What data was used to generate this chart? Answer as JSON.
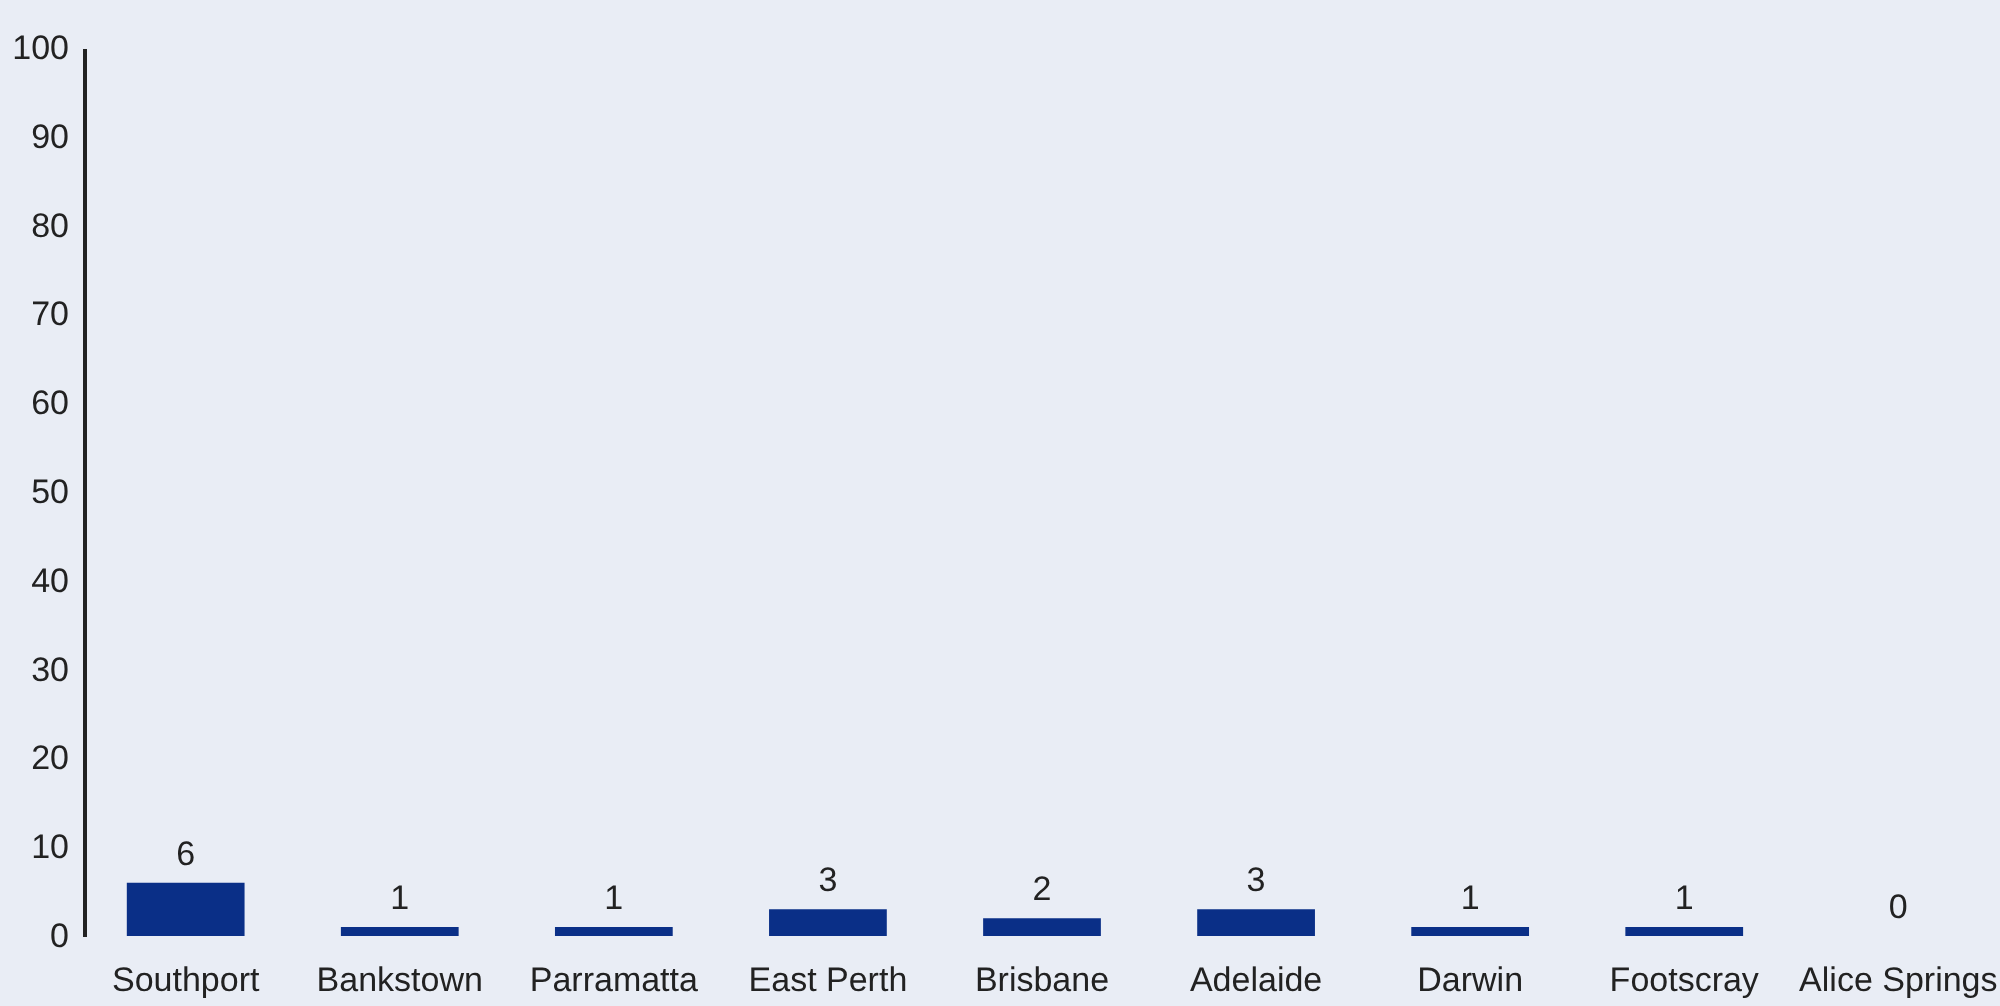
{
  "chart_data": {
    "type": "bar",
    "categories": [
      "Southport",
      "Bankstown",
      "Parramatta",
      "East Perth",
      "Brisbane",
      "Adelaide",
      "Darwin",
      "Footscray",
      "Alice Springs"
    ],
    "values": [
      6,
      1,
      1,
      3,
      2,
      3,
      1,
      1,
      0
    ],
    "color": "#0a2f87",
    "ylim": [
      0,
      100
    ],
    "yticks": [
      0,
      10,
      20,
      30,
      40,
      50,
      60,
      70,
      80,
      90,
      100
    ],
    "grid": false,
    "data_labels": true
  }
}
